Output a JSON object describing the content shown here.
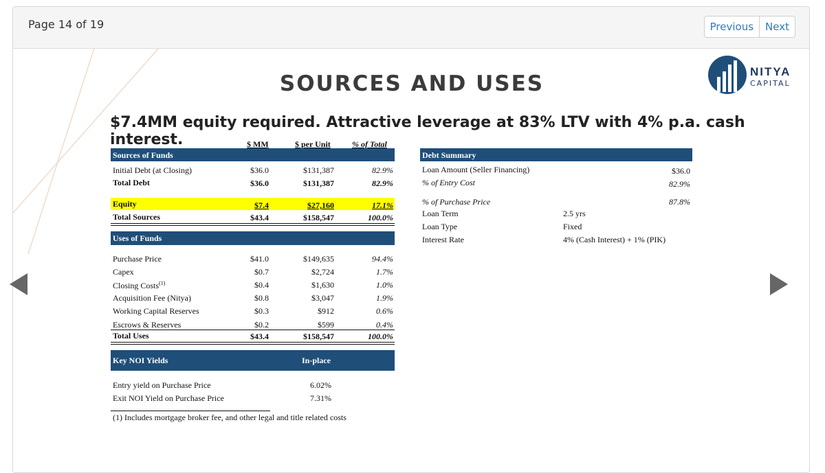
{
  "viewer": {
    "page_indicator": "Page 14 of 19",
    "previous_label": "Previous",
    "next_label": "Next"
  },
  "slide": {
    "title": "SOURCES AND USES",
    "subtitle": "$7.4MM equity required. Attractive leverage at 83% LTV with 4% p.a. cash interest.",
    "logo": {
      "name": "NITYA",
      "sub": "CAPITAL"
    },
    "columns": {
      "mm": "$ MM",
      "per_unit": "$ per Unit",
      "pct": "% of Total"
    },
    "sources": {
      "header": "Sources of Funds",
      "initial_debt": {
        "label": "Initial Debt (at Closing)",
        "mm": "$36.0",
        "per_unit": "$131,387",
        "pct": "82.9%"
      },
      "total_debt": {
        "label": "Total Debt",
        "mm": "$36.0",
        "per_unit": "$131,387",
        "pct": "82.9%"
      },
      "equity": {
        "label": "Equity",
        "mm": "$7.4",
        "per_unit": "$27,160",
        "pct": "17.1%"
      },
      "total_sources": {
        "label": "Total Sources",
        "mm": "$43.4",
        "per_unit": "$158,547",
        "pct": "100.0%"
      }
    },
    "uses": {
      "header": "Uses of Funds",
      "rows": [
        {
          "label": "Purchase Price",
          "sup": "",
          "mm": "$41.0",
          "per_unit": "$149,635",
          "pct": "94.4%"
        },
        {
          "label": "Capex",
          "sup": "",
          "mm": "$0.7",
          "per_unit": "$2,724",
          "pct": "1.7%"
        },
        {
          "label": "Closing Costs",
          "sup": "(1)",
          "mm": "$0.4",
          "per_unit": "$1,630",
          "pct": "1.0%"
        },
        {
          "label": "Acquisition Fee (Nitya)",
          "sup": "",
          "mm": "$0.8",
          "per_unit": "$3,047",
          "pct": "1.9%"
        },
        {
          "label": "Working Capital Reserves",
          "sup": "",
          "mm": "$0.3",
          "per_unit": "$912",
          "pct": "0.6%"
        },
        {
          "label": "Escrows & Reserves",
          "sup": "",
          "mm": "$0.2",
          "per_unit": "$599",
          "pct": "0.4%"
        }
      ],
      "total": {
        "label": "Total Uses",
        "mm": "$43.4",
        "per_unit": "$158,547",
        "pct": "100.0%"
      }
    },
    "noi": {
      "header": "Key NOI Yields",
      "col": "In-place",
      "entry": {
        "label": "Entry yield on Purchase Price",
        "value": "6.02%"
      },
      "exit": {
        "label": "Exit NOI Yield on Purchase Price",
        "value": "7.31%"
      }
    },
    "footnote": "(1) Includes mortgage broker fee, and other legal and title related costs",
    "debt": {
      "header": "Debt Summary",
      "loan_amount": {
        "label": "Loan Amount (Seller Financing)",
        "value": "$36.0"
      },
      "pct_entry": {
        "label": "% of Entry Cost",
        "value": "82.9%"
      },
      "pct_purchase": {
        "label": "% of Purchase Price",
        "value": "87.8%"
      },
      "loan_term": {
        "label": "Loan Term",
        "value": "2.5 yrs"
      },
      "loan_type": {
        "label": "Loan Type",
        "value": "Fixed"
      },
      "interest_rate": {
        "label": "Interest Rate",
        "value": "4% (Cash Interest) + 1% (PIK)"
      }
    },
    "colors": {
      "navy": "#1f4e79",
      "highlight": "#ffff00",
      "nav_link": "#2a7bc0"
    }
  }
}
